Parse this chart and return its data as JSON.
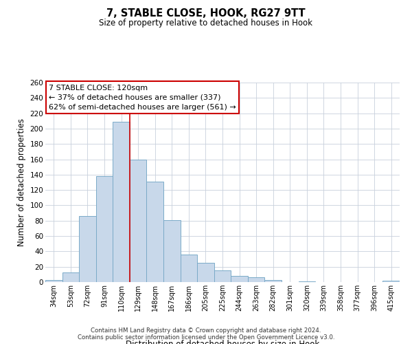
{
  "title": "7, STABLE CLOSE, HOOK, RG27 9TT",
  "subtitle": "Size of property relative to detached houses in Hook",
  "xlabel": "Distribution of detached houses by size in Hook",
  "ylabel": "Number of detached properties",
  "bar_labels": [
    "34sqm",
    "53sqm",
    "72sqm",
    "91sqm",
    "110sqm",
    "129sqm",
    "148sqm",
    "167sqm",
    "186sqm",
    "205sqm",
    "225sqm",
    "244sqm",
    "263sqm",
    "282sqm",
    "301sqm",
    "320sqm",
    "339sqm",
    "358sqm",
    "377sqm",
    "396sqm",
    "415sqm"
  ],
  "bar_values": [
    3,
    13,
    86,
    138,
    209,
    160,
    131,
    81,
    36,
    25,
    15,
    8,
    6,
    3,
    0,
    1,
    0,
    0,
    0,
    0,
    2
  ],
  "bar_color": "#c8d8ea",
  "bar_edgecolor": "#7aaac8",
  "ylim": [
    0,
    260
  ],
  "yticks": [
    0,
    20,
    40,
    60,
    80,
    100,
    120,
    140,
    160,
    180,
    200,
    220,
    240,
    260
  ],
  "red_line_x": 4.5,
  "annotation_line1": "7 STABLE CLOSE: 120sqm",
  "annotation_line2": "← 37% of detached houses are smaller (337)",
  "annotation_line3": "62% of semi-detached houses are larger (561) →",
  "annotation_box_color": "#ffffff",
  "annotation_box_edgecolor": "#cc0000",
  "footer1": "Contains HM Land Registry data © Crown copyright and database right 2024.",
  "footer2": "Contains public sector information licensed under the Open Government Licence v3.0.",
  "background_color": "#ffffff",
  "grid_color": "#c8d0dc"
}
